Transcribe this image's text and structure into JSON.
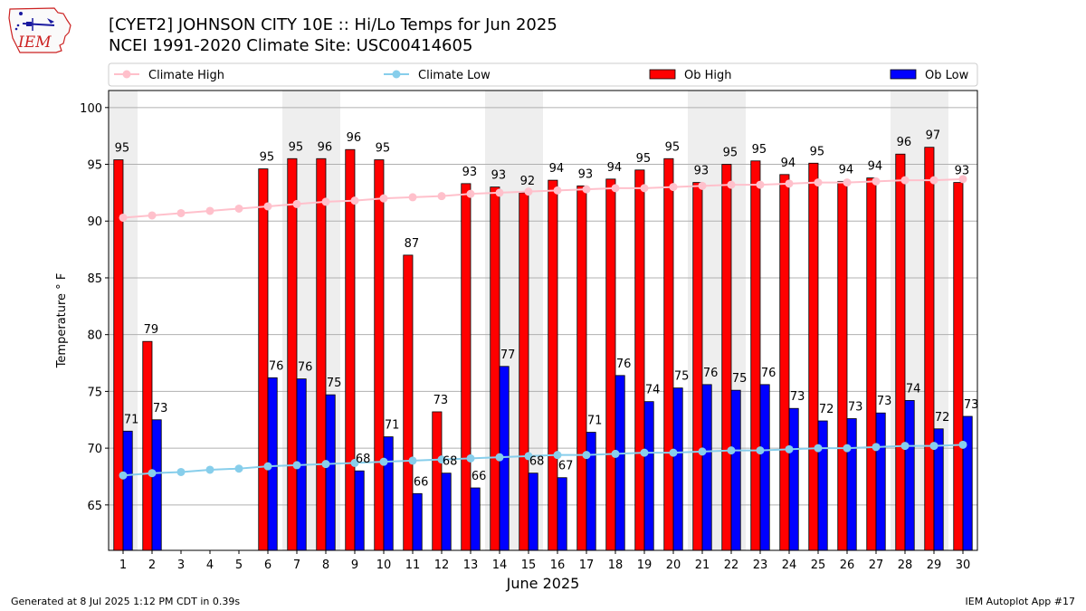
{
  "header": {
    "logo_text": "IEM",
    "title_line1": "[CYET2] JOHNSON CITY 10E :: Hi/Lo Temps for Jun 2025",
    "title_line2": "NCEI 1991-2020 Climate Site: USC00414605"
  },
  "footer": {
    "generated": "Generated at 8 Jul 2025 1:12 PM CDT in 0.39s",
    "app": "IEM Autoplot App #17"
  },
  "colors": {
    "ob_high": "#ff0000",
    "ob_low": "#0000ff",
    "climate_high": "#ffc0cb",
    "climate_low": "#87ceeb",
    "weekend_shade": "#eeeeee"
  },
  "chart_data": {
    "type": "bar",
    "xlabel": "June 2025",
    "ylabel": "Temperature ° F",
    "ylim": [
      61,
      101.5
    ],
    "yticks": [
      65,
      70,
      75,
      80,
      85,
      90,
      95,
      100
    ],
    "grid": true,
    "legend_position": "top",
    "x": [
      1,
      2,
      3,
      4,
      5,
      6,
      7,
      8,
      9,
      10,
      11,
      12,
      13,
      14,
      15,
      16,
      17,
      18,
      19,
      20,
      21,
      22,
      23,
      24,
      25,
      26,
      27,
      28,
      29,
      30
    ],
    "shaded_days": [
      1,
      7,
      8,
      14,
      15,
      21,
      22,
      28,
      29
    ],
    "series": [
      {
        "name": "Climate High",
        "kind": "line",
        "values": [
          90.3,
          90.5,
          90.7,
          90.9,
          91.1,
          91.3,
          91.5,
          91.7,
          91.8,
          92.0,
          92.1,
          92.2,
          92.4,
          92.5,
          92.6,
          92.7,
          92.8,
          92.9,
          92.9,
          93.0,
          93.1,
          93.2,
          93.2,
          93.3,
          93.4,
          93.4,
          93.5,
          93.6,
          93.6,
          93.7
        ]
      },
      {
        "name": "Climate Low",
        "kind": "line",
        "values": [
          67.6,
          67.8,
          67.9,
          68.1,
          68.2,
          68.4,
          68.5,
          68.6,
          68.7,
          68.8,
          68.9,
          69.0,
          69.1,
          69.2,
          69.3,
          69.4,
          69.4,
          69.5,
          69.6,
          69.6,
          69.7,
          69.8,
          69.8,
          69.9,
          70.0,
          70.0,
          70.1,
          70.2,
          70.2,
          70.3
        ]
      },
      {
        "name": "Ob High",
        "kind": "bar",
        "values": [
          95.4,
          79.4,
          null,
          null,
          null,
          94.6,
          95.5,
          95.5,
          96.3,
          95.4,
          87.0,
          73.2,
          93.3,
          93.0,
          92.5,
          93.6,
          93.1,
          93.7,
          94.5,
          95.5,
          93.4,
          95.0,
          95.3,
          94.1,
          95.1,
          93.5,
          93.8,
          95.9,
          96.5,
          93.4
        ],
        "labels": [
          "95",
          "79",
          "",
          "",
          "",
          "95",
          "95",
          "96",
          "96",
          "95",
          "87",
          "73",
          "93",
          "93",
          "92",
          "94",
          "93",
          "94",
          "95",
          "95",
          "93",
          "95",
          "95",
          "94",
          "95",
          "94",
          "94",
          "96",
          "97",
          "93"
        ]
      },
      {
        "name": "Ob Low",
        "kind": "bar",
        "values": [
          71.5,
          72.5,
          null,
          null,
          null,
          76.2,
          76.1,
          74.7,
          68.0,
          71.0,
          66.0,
          67.8,
          66.5,
          77.2,
          67.8,
          67.4,
          71.4,
          76.4,
          74.1,
          75.3,
          75.6,
          75.1,
          75.6,
          73.5,
          72.4,
          72.6,
          73.1,
          74.2,
          71.7,
          72.8
        ],
        "labels": [
          "71",
          "73",
          "",
          "",
          "",
          "76",
          "76",
          "75",
          "68",
          "71",
          "66",
          "68",
          "66",
          "77",
          "68",
          "67",
          "71",
          "76",
          "74",
          "75",
          "76",
          "75",
          "76",
          "73",
          "72",
          "73",
          "73",
          "74",
          "72",
          "73"
        ]
      }
    ]
  }
}
